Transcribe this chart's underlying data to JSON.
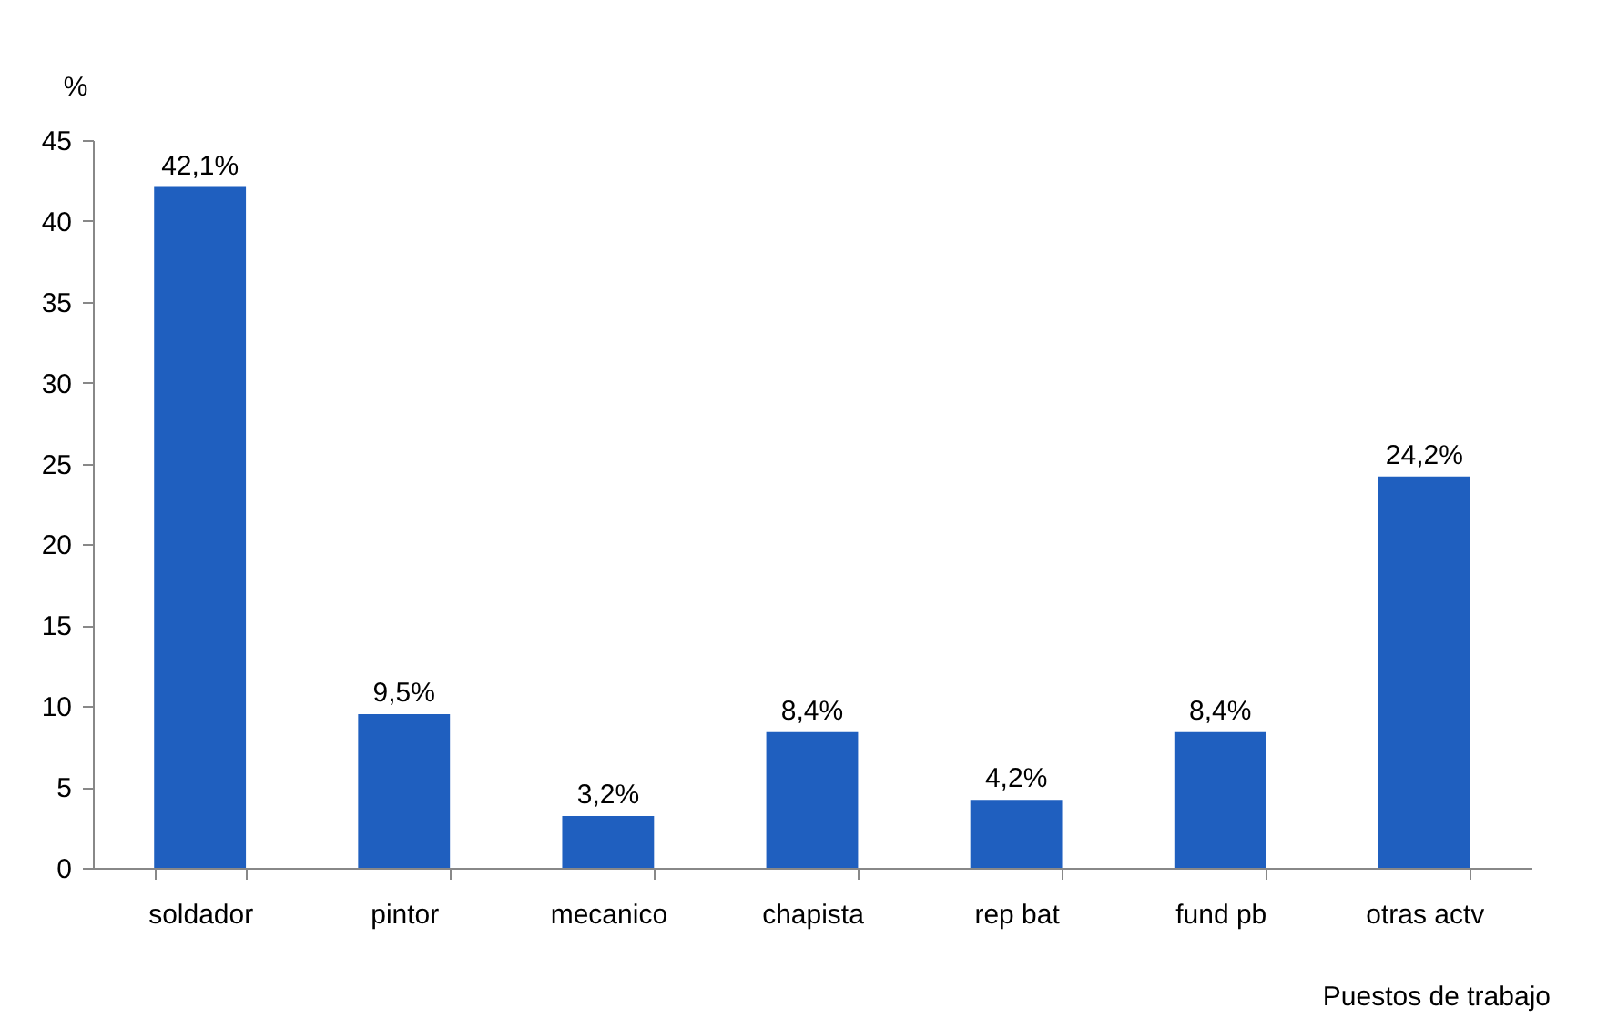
{
  "chart_data": {
    "type": "bar",
    "ylabel": "%",
    "xlabel": "Puestos de trabajo",
    "categories": [
      "soldador",
      "pintor",
      "mecanico",
      "chapista",
      "rep bat",
      "fund pb",
      "otras actv"
    ],
    "values": [
      42.1,
      9.5,
      3.2,
      8.4,
      4.2,
      8.4,
      24.2
    ],
    "value_labels": [
      "42,1%",
      "9,5%",
      "3,2%",
      "8,4%",
      "4,2%",
      "8,4%",
      "24,2%"
    ],
    "color": "#1f5fbf",
    "ylim": [
      0,
      45
    ],
    "yticks": [
      0,
      5,
      10,
      15,
      20,
      25,
      30,
      35,
      40,
      45
    ],
    "grid": false
  }
}
